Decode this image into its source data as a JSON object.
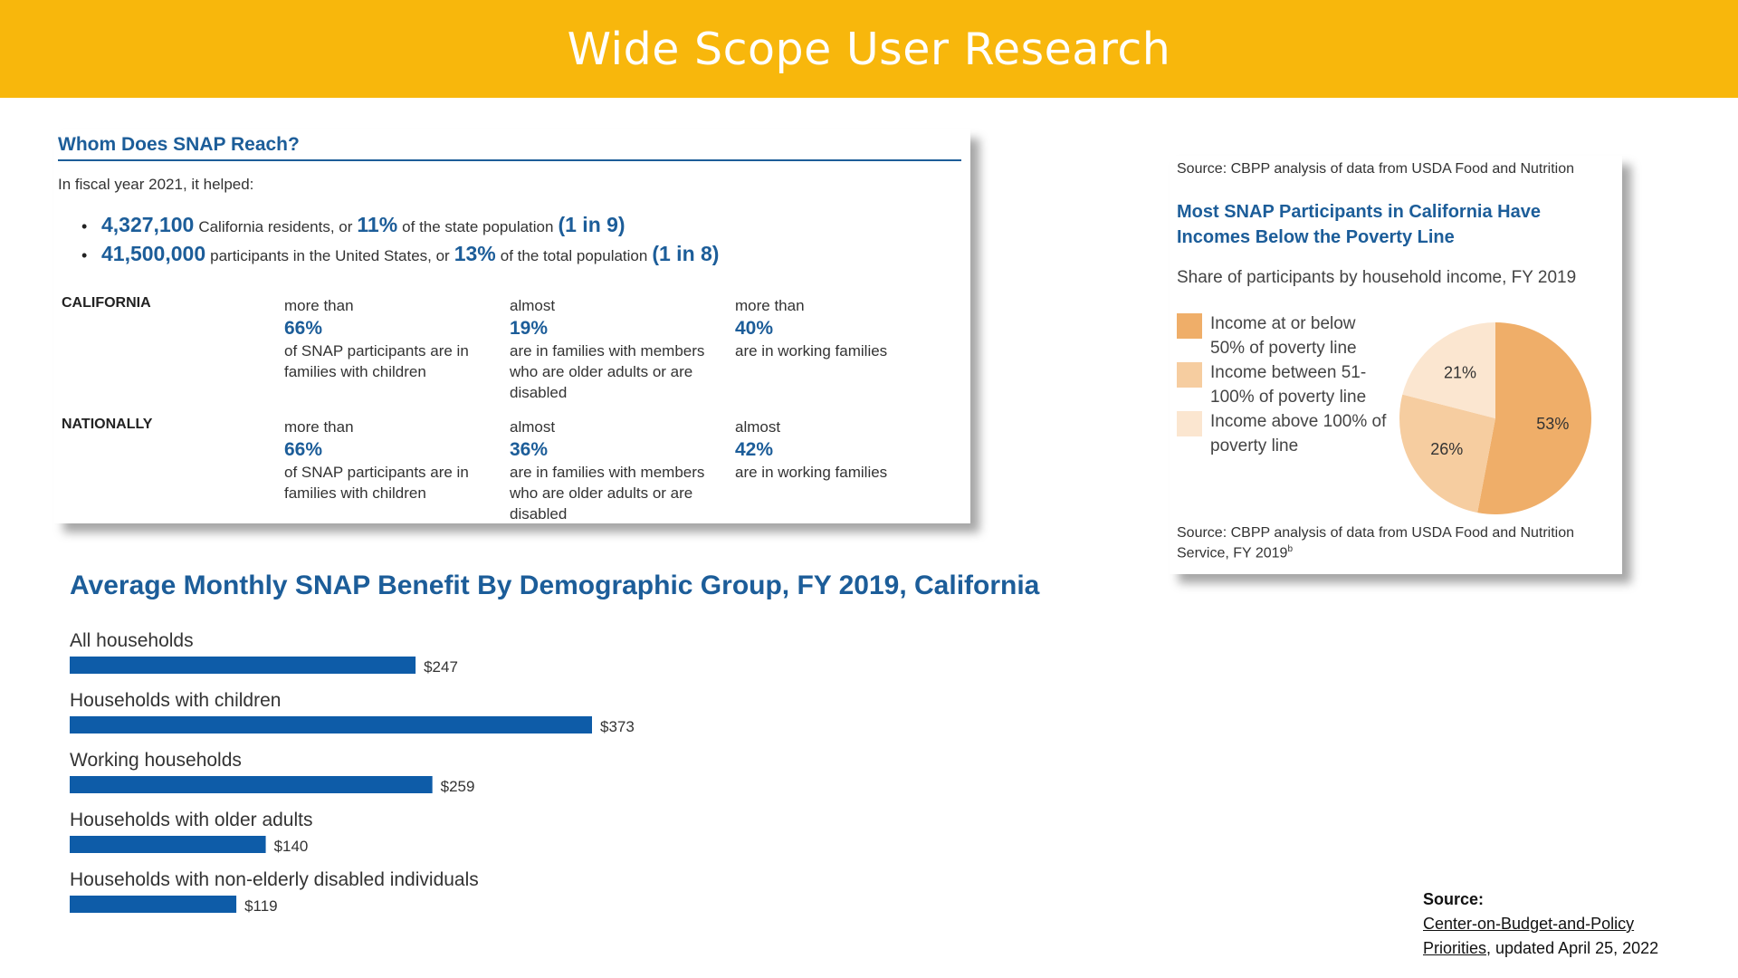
{
  "header": {
    "title": "Wide Scope User Research"
  },
  "snap_reach": {
    "title": "Whom Does SNAP Reach?",
    "intro": "In fiscal year 2021, it helped:",
    "bullets": [
      {
        "count": "4,327,100",
        "text1": "California residents, or",
        "pct": "11%",
        "text2": "of the state population",
        "ratio": "(1 in 9)"
      },
      {
        "count": "41,500,000",
        "text1": "participants in the United States, or",
        "pct": "13%",
        "text2": "of the total population",
        "ratio": "(1 in 8)"
      }
    ],
    "rows": [
      {
        "label": "CALIFORNIA",
        "cols": [
          {
            "qualifier": "more than",
            "pct": "66%",
            "desc": "of SNAP participants are in families with children"
          },
          {
            "qualifier": "almost",
            "pct": "19%",
            "desc": "are in families with members who are older adults or are disabled"
          },
          {
            "qualifier": "more than",
            "pct": "40%",
            "desc": "are in working families"
          }
        ]
      },
      {
        "label": "NATIONALLY",
        "cols": [
          {
            "qualifier": "more than",
            "pct": "66%",
            "desc": "of SNAP participants are in families with children"
          },
          {
            "qualifier": "almost",
            "pct": "36%",
            "desc": "are in families with members who are older adults or are disabled"
          },
          {
            "qualifier": "almost",
            "pct": "42%",
            "desc": "are in working families"
          }
        ]
      }
    ]
  },
  "colors": {
    "header": "#F8B70C",
    "blue": "#1C5D99",
    "bar": "#0E5CA8",
    "pie": [
      "#EFAE69",
      "#F6CDA0",
      "#FBE6D0"
    ]
  },
  "chart_data": [
    {
      "type": "pie",
      "source_top": "Source: CBPP analysis of data from USDA Food and Nutrition",
      "title": "Most SNAP Participants in California Have Incomes Below the Poverty Line",
      "subtitle": "Share of participants by household income, FY 2019",
      "labels": [
        "Income at or below 50% of poverty line",
        "Income between 51-100% of poverty line",
        "Income above 100% of poverty line"
      ],
      "values": [
        53,
        26,
        21
      ],
      "value_labels": [
        "53%",
        "26%",
        "21%"
      ],
      "source_bottom": "Source: CBPP analysis of data from USDA Food and Nutrition Service, FY 2019",
      "source_superscript": "b"
    },
    {
      "type": "bar",
      "orientation": "horizontal",
      "title": "Average Monthly SNAP Benefit By Demographic Group, FY 2019, California",
      "categories": [
        "All households",
        "Households with children",
        "Working households",
        "Households with older adults",
        "Households with non-elderly disabled individuals"
      ],
      "values": [
        247,
        373,
        259,
        140,
        119
      ],
      "value_labels": [
        "$247",
        "$373",
        "$259",
        "$140",
        "$119"
      ],
      "xlim": [
        0,
        373
      ]
    }
  ],
  "source": {
    "label": "Source:",
    "link1": "Center-on-Budget-and-Policy",
    "link2": "Priorities",
    "tail": ", updated April 25, 2022"
  }
}
